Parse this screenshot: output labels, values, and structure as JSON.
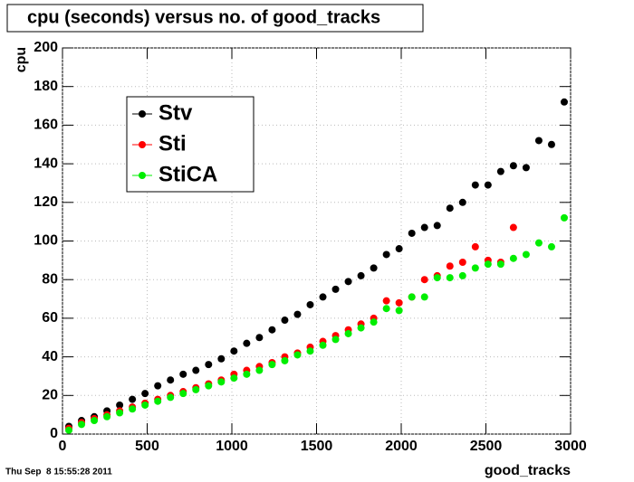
{
  "chart_data": {
    "type": "scatter",
    "title": "cpu (seconds) versus no. of good_tracks",
    "x_label": "good_tracks",
    "y_label": "cpu",
    "timestamp": "Thu Sep  8 15:55:28 2011",
    "x": [
      37.5,
      112.5,
      187.5,
      262.5,
      337.5,
      412.5,
      487.5,
      562.5,
      637.5,
      712.5,
      787.5,
      862.5,
      937.5,
      1012.5,
      1087.5,
      1162.5,
      1237.5,
      1312.5,
      1387.5,
      1462.5,
      1537.5,
      1612.5,
      1687.5,
      1762.5,
      1837.5,
      1912.5,
      1987.5,
      2062.5,
      2137.5,
      2212.5,
      2287.5,
      2362.5,
      2437.5,
      2512.5,
      2587.5,
      2662.5,
      2737.5,
      2812.5,
      2887.5,
      2962.5
    ],
    "series": [
      {
        "name": "Stv",
        "color": "#000000",
        "values": [
          4,
          7,
          9,
          12,
          15,
          18,
          21,
          25,
          28,
          31,
          33,
          36,
          39,
          43,
          47,
          50,
          54,
          59,
          62,
          67,
          71,
          75,
          79,
          82,
          86,
          93,
          96,
          104,
          107,
          108,
          117,
          120,
          129,
          129,
          136,
          139,
          138,
          152,
          150,
          172
        ]
      },
      {
        "name": "Sti",
        "color": "#ff0000",
        "values": [
          3,
          6,
          8,
          10,
          12,
          14,
          16,
          18,
          20,
          22,
          24,
          26,
          28,
          31,
          33,
          35,
          37,
          40,
          42,
          45,
          48,
          51,
          54,
          57,
          60,
          69,
          68,
          71,
          80,
          82,
          87,
          89,
          97,
          90,
          89,
          107,
          null,
          null,
          null,
          null
        ]
      },
      {
        "name": "StiCA",
        "color": "#00ee00",
        "values": [
          2,
          5,
          7,
          9,
          11,
          13,
          15,
          17,
          19,
          21,
          23,
          25,
          27,
          29,
          31,
          33,
          36,
          38,
          41,
          43,
          46,
          49,
          52,
          55,
          58,
          65,
          64,
          71,
          71,
          81,
          81,
          82,
          86,
          88,
          88,
          91,
          93,
          99,
          97,
          112
        ]
      }
    ],
    "xlim": [
      0,
      3000
    ],
    "xticks": [
      0,
      500,
      1000,
      1500,
      2000,
      2500,
      3000
    ],
    "ylim": [
      0,
      200
    ],
    "yticks": [
      0,
      20,
      40,
      60,
      80,
      100,
      120,
      140,
      160,
      180,
      200
    ],
    "grid": true
  }
}
